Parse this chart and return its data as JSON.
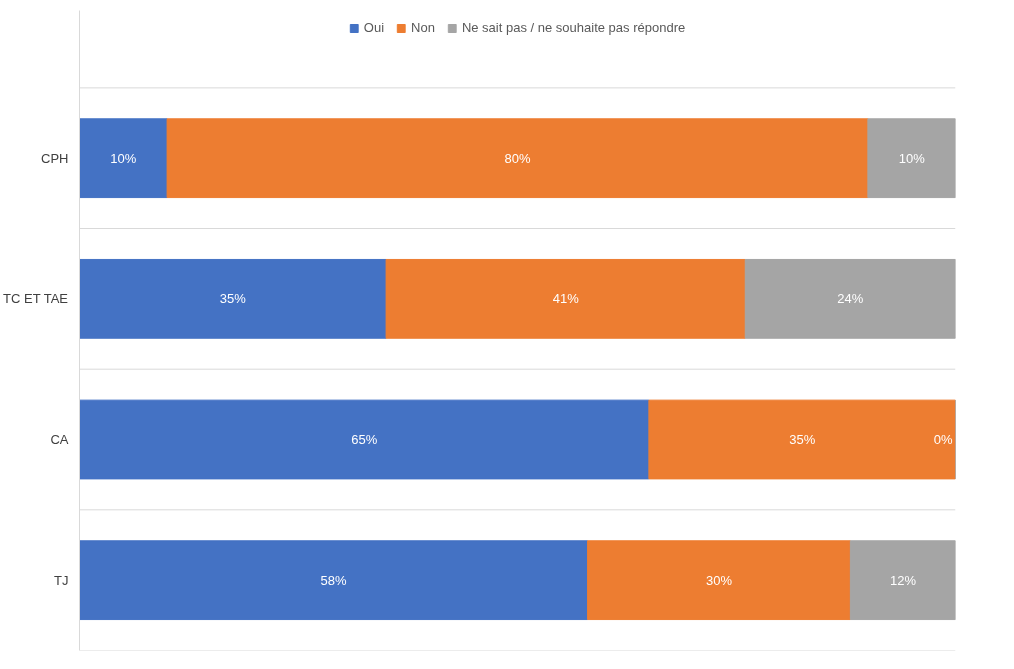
{
  "chart_data": {
    "type": "bar",
    "orientation": "horizontal",
    "stacked": true,
    "categories": [
      "CPH",
      "TC ET TAE",
      "CA",
      "TJ"
    ],
    "series": [
      {
        "name": "Oui",
        "color": "#4472c4",
        "values": [
          10,
          35,
          65,
          58
        ],
        "value_labels": [
          "10%",
          "35%",
          "65%",
          "58%"
        ]
      },
      {
        "name": "Non",
        "color": "#ed7d31",
        "values": [
          80,
          41,
          35,
          30
        ],
        "value_labels": [
          "80%",
          "41%",
          "35%",
          "30%"
        ]
      },
      {
        "name": "Ne sait pas / ne souhaite pas répondre",
        "color": "#a5a5a5",
        "values": [
          10,
          24,
          0,
          12
        ],
        "value_labels": [
          "10%",
          "24%",
          "0%",
          "12%"
        ]
      }
    ],
    "xlim": [
      0,
      100
    ],
    "tick_labels": "y",
    "grid": "y",
    "legend": "top"
  }
}
